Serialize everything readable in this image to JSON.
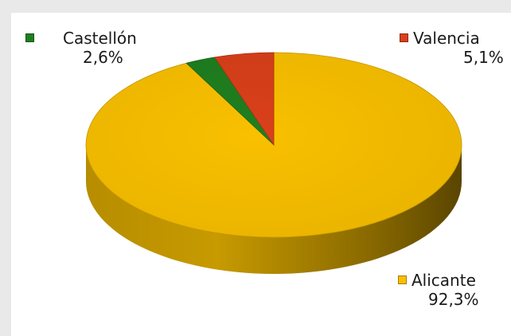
{
  "chart_data": {
    "type": "pie",
    "style": "3d",
    "slices": [
      {
        "label": "Alicante",
        "value": 92.3,
        "display": "92,3%",
        "color": "#F9C000"
      },
      {
        "label": "Valencia",
        "value": 5.1,
        "display": "5,1%",
        "color": "#D9401A"
      },
      {
        "label": "Castellón",
        "value": 2.6,
        "display": "2,6%",
        "color": "#1F7F1F"
      }
    ]
  }
}
